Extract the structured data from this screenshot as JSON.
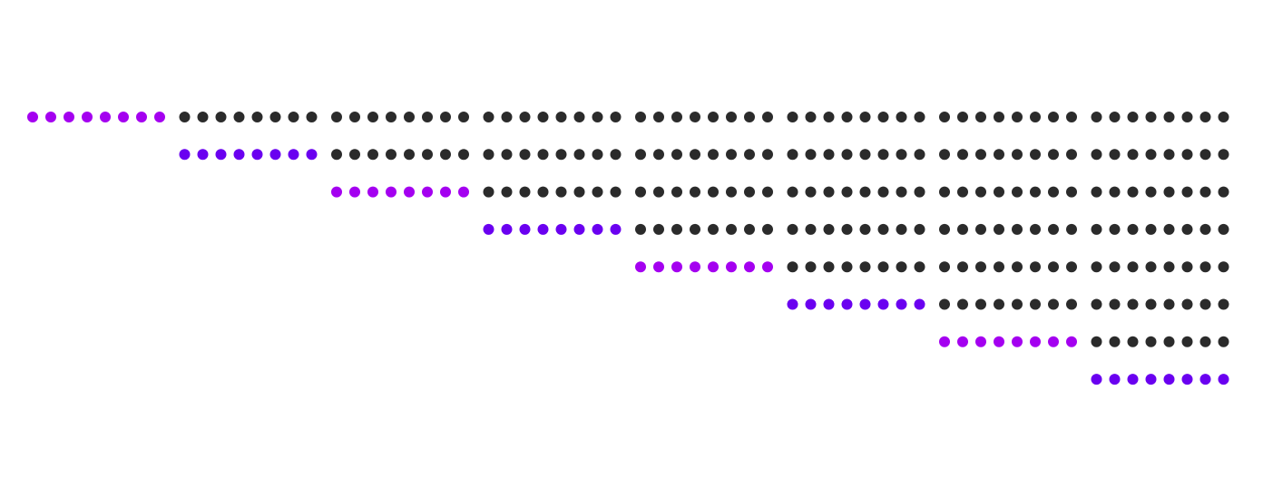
{
  "diagram": {
    "rows": 8,
    "groups_per_row": 8,
    "dots_per_group": 8,
    "rows_data": [
      {
        "blank_groups": 0,
        "highlight_group": 0,
        "highlight_color": "#a400f0"
      },
      {
        "blank_groups": 1,
        "highlight_group": 1,
        "highlight_color": "#6a00f0"
      },
      {
        "blank_groups": 2,
        "highlight_group": 2,
        "highlight_color": "#a400f0"
      },
      {
        "blank_groups": 3,
        "highlight_group": 3,
        "highlight_color": "#6a00f0"
      },
      {
        "blank_groups": 4,
        "highlight_group": 4,
        "highlight_color": "#a400f0"
      },
      {
        "blank_groups": 5,
        "highlight_group": 5,
        "highlight_color": "#6a00f0"
      },
      {
        "blank_groups": 6,
        "highlight_group": 6,
        "highlight_color": "#a400f0"
      },
      {
        "blank_groups": 7,
        "highlight_group": 7,
        "highlight_color": "#6a00f0"
      }
    ],
    "colors": {
      "dark_dot": "#2b2b2b",
      "magenta_dot": "#a400f0",
      "violet_dot": "#6a00f0",
      "background": "#ffffff"
    }
  }
}
